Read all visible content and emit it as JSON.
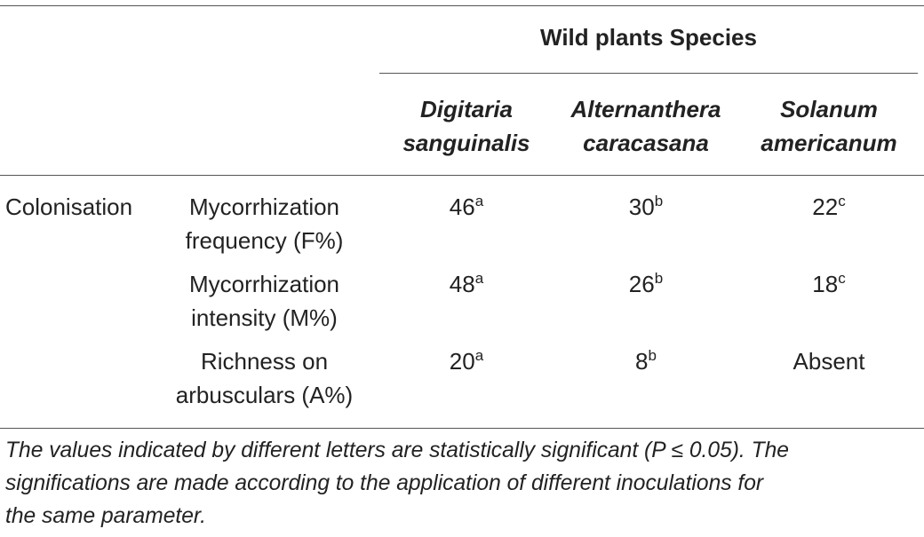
{
  "table": {
    "group_header": "Wild plants Species",
    "species": [
      {
        "line1": "Digitaria",
        "line2": "sanguinalis"
      },
      {
        "line1": "Alternanthera",
        "line2": "caracasana"
      },
      {
        "line1": "Solanum",
        "line2": "americanum"
      }
    ],
    "row_group": "Colonisation",
    "rows": [
      {
        "param_line1": "Mycorrhization",
        "param_line2": "frequency (F%)",
        "values": [
          {
            "v": "46",
            "sup": "a"
          },
          {
            "v": "30",
            "sup": "b"
          },
          {
            "v": "22",
            "sup": "c"
          }
        ]
      },
      {
        "param_line1": "Mycorrhization",
        "param_line2": "intensity (M%)",
        "values": [
          {
            "v": "48",
            "sup": "a"
          },
          {
            "v": "26",
            "sup": "b"
          },
          {
            "v": "18",
            "sup": "c"
          }
        ]
      },
      {
        "param_line1": "Richness on",
        "param_line2": "arbusculars (A%)",
        "values": [
          {
            "v": "20",
            "sup": "a"
          },
          {
            "v": "8",
            "sup": "b"
          },
          {
            "v": "Absent",
            "sup": ""
          }
        ]
      }
    ]
  },
  "footnote": {
    "lines": [
      "The values indicated by different letters are statistically significant (P ≤ 0.05). The",
      "significations are made according to the application of different inoculations for",
      "the same parameter."
    ]
  }
}
